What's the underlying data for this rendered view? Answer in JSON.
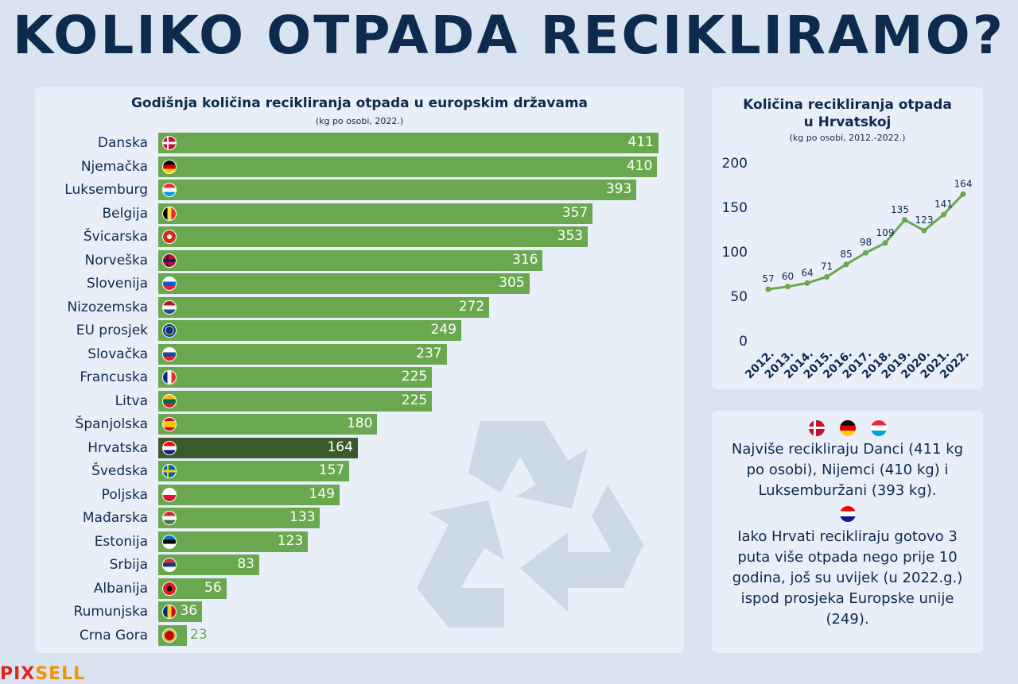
{
  "title": "KOLIKO OTPADA RECIKLIRAMO?",
  "logo": {
    "part1": "PIX",
    "part2": "SELL"
  },
  "chart_data": [
    {
      "type": "bar",
      "orientation": "horizontal",
      "title": "Godišnja količina recikliranja otpada u europskim državama",
      "subtitle": "(kg po osobi, 2022.)",
      "categories": [
        "Danska",
        "Njemačka",
        "Luksemburg",
        "Belgija",
        "Švicarska",
        "Norveška",
        "Slovenija",
        "Nizozemska",
        "EU prosjek",
        "Slovačka",
        "Francuska",
        "Litva",
        "Španjolska",
        "Hrvatska",
        "Švedska",
        "Poljska",
        "Mađarska",
        "Estonija",
        "Srbija",
        "Albanija",
        "Rumunjska",
        "Crna Gora"
      ],
      "values": [
        411,
        410,
        393,
        357,
        353,
        316,
        305,
        272,
        249,
        237,
        225,
        225,
        180,
        164,
        157,
        149,
        133,
        123,
        83,
        56,
        36,
        23
      ],
      "highlight": "Hrvatska",
      "colors": {
        "bar": "#6aa84f",
        "highlight": "#3b5a2b"
      },
      "flags": [
        "dk",
        "de",
        "lu",
        "be",
        "ch",
        "no",
        "si",
        "nl",
        "eu",
        "sk",
        "fr",
        "lt",
        "es",
        "hr",
        "se",
        "pl",
        "hu",
        "ee",
        "rs",
        "al",
        "ro",
        "me"
      ]
    },
    {
      "type": "line",
      "title_line1": "Količina recikliranja otpada",
      "title_line2": "u Hrvatskoj",
      "subtitle": "(kg po osobi, 2012.-2022.)",
      "x": [
        "2012.",
        "2013.",
        "2014.",
        "2015.",
        "2016.",
        "2017.",
        "2018.",
        "2019.",
        "2020.",
        "2021.",
        "2022."
      ],
      "y": [
        57,
        60,
        64,
        71,
        85,
        98,
        109,
        135,
        123,
        141,
        164
      ],
      "yticks": [
        "0",
        "50",
        "100",
        "150",
        "200"
      ],
      "ylim": [
        0,
        200
      ],
      "color": "#6aa84f"
    }
  ],
  "info": {
    "text1_lines": [
      "Najviše recikliraju Danci (411 kg",
      "po osobi), Nijemci (410 kg) i",
      "Luksemburžani (393 kg)."
    ],
    "text2_lines": [
      "Iako Hrvati recikliraju gotovo 3",
      "puta više otpada nego prije 10",
      "godina, još su uvijek (u 2022.g.)",
      "ispod prosjeka Europske unije",
      "(249)."
    ]
  }
}
